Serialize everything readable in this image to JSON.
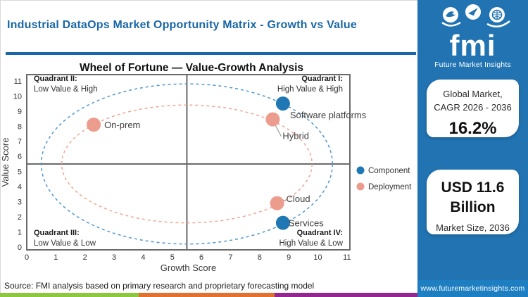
{
  "header": {
    "title": "Industrial DataOps Market Opportunity Matrix - Growth vs Value",
    "accent_color": "#1a67a6"
  },
  "logo": {
    "text": "fmi",
    "subtitle": "Future Market Insights",
    "icons": [
      "bird-icon",
      "paper-plane-icon",
      "globe-icon"
    ],
    "bg_color": "#2173b2"
  },
  "sidebar": {
    "card1": {
      "line1": "Global Market,",
      "line2": "CAGR 2026 - 2036",
      "value": "16.2%"
    },
    "card2": {
      "value_line1": "USD 11.6",
      "value_line2": "Billion",
      "label": "Market Size, 2036"
    },
    "website": "www.futuremarketinsights.com",
    "bg_color": "#2173b2",
    "urlbar_color": "#1d7fc1"
  },
  "chart_data": {
    "type": "scatter",
    "title": "Wheel of Fortune — Value-Growth Analysis",
    "xlabel": "Growth Score",
    "ylabel": "Value Score",
    "xlim": [
      0,
      11.1
    ],
    "ylim": [
      0,
      11.6
    ],
    "xticks": [
      0,
      1,
      2,
      3,
      4,
      5,
      6,
      7,
      8,
      9,
      10,
      11
    ],
    "yticks": [
      0,
      1,
      2,
      3,
      4,
      5,
      6,
      7,
      8,
      9,
      10,
      11
    ],
    "grid": false,
    "crosshair": {
      "x": 5.5,
      "y": 5.5
    },
    "series": [
      {
        "name": "Component",
        "color": "#1f77b4",
        "ellipse_color": "#4e95d0",
        "ellipse": {
          "cx": 5.5,
          "cy": 5.5,
          "rx": 5.0,
          "ry": 5.3
        },
        "points": [
          {
            "label": "Software platforms",
            "x": 8.8,
            "y": 9.5,
            "label_dx": 10,
            "label_dy": 21
          },
          {
            "label": "Services",
            "x": 8.8,
            "y": 1.6,
            "label_dx": 8,
            "label_dy": 5
          }
        ]
      },
      {
        "name": "Deployment",
        "color": "#ec9c8d",
        "ellipse_color": "#f0a593",
        "ellipse": {
          "cx": 5.5,
          "cy": 5.5,
          "rx": 4.3,
          "ry": 3.9
        },
        "points": [
          {
            "label": "On-prem",
            "x": 2.3,
            "y": 8.1,
            "label_dx": 15,
            "label_dy": 5
          },
          {
            "label": "Hybrid",
            "x": 8.45,
            "y": 8.45,
            "label_dx": 14,
            "label_dy": 28,
            "leader": [
              3,
              7,
              12,
              24
            ]
          },
          {
            "label": "Cloud",
            "x": 8.6,
            "y": 2.9,
            "label_dx": 13,
            "label_dy": -2,
            "leader": [
              5,
              -6,
              12,
              -3
            ]
          }
        ]
      }
    ],
    "quadrants": [
      {
        "name": "Quadrant II:",
        "desc": "Low Value & High",
        "pos": "top-left"
      },
      {
        "name": "Quadrant I:",
        "desc": "High Value & High",
        "pos": "top-right"
      },
      {
        "name": "Quadrant III:",
        "desc": "Low Value & Low",
        "pos": "bottom-left"
      },
      {
        "name": "Quadrant IV:",
        "desc": "High Value & Low",
        "pos": "bottom-right"
      }
    ],
    "legend": [
      {
        "label": "Component",
        "color": "#1f77b4"
      },
      {
        "label": "Deployment",
        "color": "#ec9c8d"
      }
    ],
    "legend_position": "right"
  },
  "footer": {
    "source": "Source: FMI analysis based on primary research and proprietary forecasting model",
    "strip_colors": [
      "#8dc63f",
      "#e0712e",
      "#92278f"
    ]
  }
}
